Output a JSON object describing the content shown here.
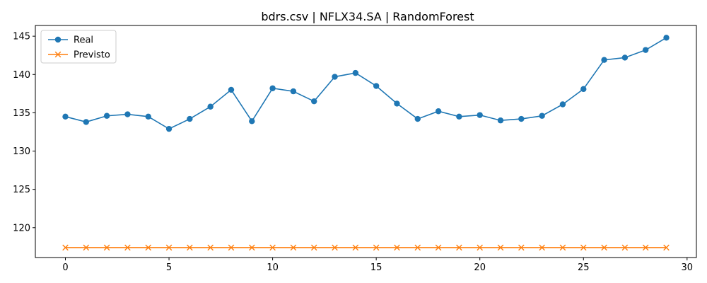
{
  "chart_data": {
    "type": "line",
    "title": "bdrs.csv | NFLX34.SA | RandomForest",
    "xlabel": "",
    "ylabel": "",
    "x": [
      0,
      1,
      2,
      3,
      4,
      5,
      6,
      7,
      8,
      9,
      10,
      11,
      12,
      13,
      14,
      15,
      16,
      17,
      18,
      19,
      20,
      21,
      22,
      23,
      24,
      25,
      26,
      27,
      28,
      29
    ],
    "xlim": [
      -1.45,
      30.45
    ],
    "ylim": [
      116.1,
      146.4
    ],
    "xticks": [
      0,
      5,
      10,
      15,
      20,
      25,
      30
    ],
    "yticks": [
      120,
      125,
      130,
      135,
      140,
      145
    ],
    "grid": false,
    "legend_position": "top-left",
    "series": [
      {
        "name": "Real",
        "color": "#1f77b4",
        "marker": "circle",
        "values": [
          134.5,
          133.8,
          134.6,
          134.8,
          134.5,
          132.9,
          134.2,
          135.8,
          138.0,
          133.9,
          138.2,
          137.8,
          136.5,
          139.7,
          140.2,
          138.5,
          136.2,
          134.2,
          135.2,
          134.5,
          134.7,
          134.0,
          134.2,
          134.6,
          136.1,
          138.1,
          141.9,
          142.2,
          143.2,
          144.8
        ]
      },
      {
        "name": "Previsto",
        "color": "#ff7f0e",
        "marker": "x",
        "values": [
          117.4,
          117.4,
          117.4,
          117.4,
          117.4,
          117.4,
          117.4,
          117.4,
          117.4,
          117.4,
          117.4,
          117.4,
          117.4,
          117.4,
          117.4,
          117.4,
          117.4,
          117.4,
          117.4,
          117.4,
          117.4,
          117.4,
          117.4,
          117.4,
          117.4,
          117.4,
          117.4,
          117.4,
          117.4,
          117.4
        ]
      }
    ]
  }
}
